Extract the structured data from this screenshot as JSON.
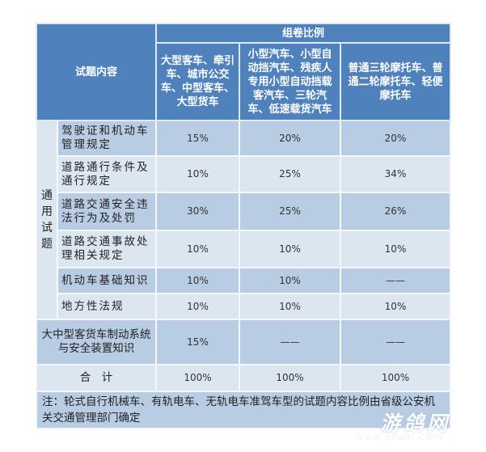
{
  "header": {
    "content_label": "试题内容",
    "ratio_label": "组卷比例",
    "columns": [
      "大型客车、牵引车、城市公交车、中型客车、大型货车",
      "小型汽车、小型自动挡汽车、残疾人专用小型自动挡载客汽车、三轮汽车、低速载货汽车",
      "普通三轮摩托车、普通二轮摩托车、轻便摩托车"
    ]
  },
  "general_label": "通用试题",
  "rows": [
    {
      "label": "驾驶证和机动车管理规定",
      "values": [
        "15%",
        "20%",
        "20%"
      ]
    },
    {
      "label": "道路通行条件及通行规定",
      "values": [
        "10%",
        "25%",
        "34%"
      ]
    },
    {
      "label": "道路交通安全违法行为及处罚",
      "values": [
        "30%",
        "25%",
        "26%"
      ]
    },
    {
      "label": "道路交通事故处理相关规定",
      "values": [
        "10%",
        "10%",
        "10%"
      ]
    },
    {
      "label": "机动车基础知识",
      "values": [
        "10%",
        "10%",
        "——"
      ]
    },
    {
      "label": "地方性法规",
      "values": [
        "10%",
        "10%",
        "10%"
      ]
    }
  ],
  "special_row": {
    "label": "大中型客货车制动系统与安全装置知识",
    "values": [
      "15%",
      "——",
      "——"
    ]
  },
  "total_row": {
    "label": "合　计",
    "values": [
      "100%",
      "100%",
      "100%"
    ]
  },
  "note": "注：轮式自行机械车、有轨电车、无轨电车准驾车型的试题内容比例由省级公安机关交通管理部门确定",
  "watermark": {
    "logo": "游鸽网",
    "url": "www.youxi.com"
  },
  "colors": {
    "header": "#4f81bd",
    "row_dark": "#b8cce4",
    "row_light": "#dce6f1"
  }
}
